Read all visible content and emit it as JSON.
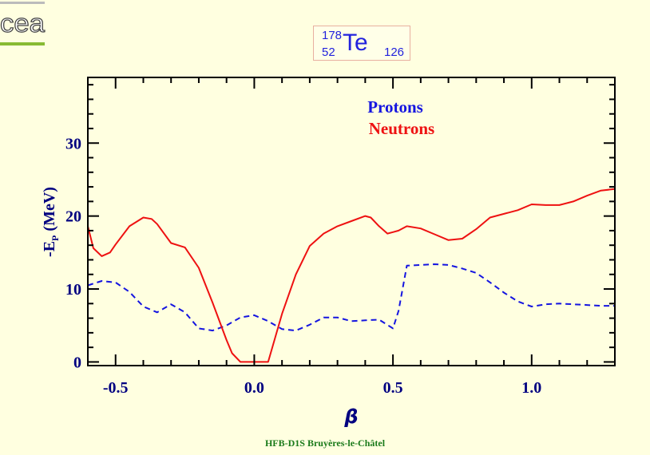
{
  "logo": {
    "text": "cea",
    "icon": "cea-logo-icon"
  },
  "nucleus": {
    "mass_number": "178",
    "atomic_number": "52",
    "symbol": "Te",
    "neutron_number": "126"
  },
  "footer": "HFB-D1S Bruyères-le-Châtel",
  "colors": {
    "background": "#ffffe0",
    "axis": "#000080",
    "protons": "#1515e0",
    "neutrons": "#ee1111",
    "footer": "#1a7a1a"
  },
  "chart_data": {
    "type": "line",
    "xlabel": "β",
    "ylabel": "-E",
    "ylabel_sub": "P",
    "ylabel_unit": "(MeV)",
    "xlim": [
      -0.6,
      1.3
    ],
    "ylim": [
      -0.5,
      39
    ],
    "x_ticks": [
      {
        "value": -0.5,
        "label": "-0.5"
      },
      {
        "value": 0.0,
        "label": "0.0"
      },
      {
        "value": 0.5,
        "label": "0.5"
      },
      {
        "value": 1.0,
        "label": "1.0"
      }
    ],
    "y_ticks": [
      {
        "value": 0,
        "label": "0"
      },
      {
        "value": 10,
        "label": "10"
      },
      {
        "value": 20,
        "label": "20"
      },
      {
        "value": 30,
        "label": "30"
      }
    ],
    "legend_position": "top-center",
    "grid": false,
    "series": [
      {
        "name": "Protons",
        "style": "dashed",
        "color": "#1515e0",
        "x": [
          -0.6,
          -0.55,
          -0.5,
          -0.45,
          -0.4,
          -0.35,
          -0.3,
          -0.25,
          -0.2,
          -0.15,
          -0.1,
          -0.05,
          0.0,
          0.05,
          0.1,
          0.15,
          0.2,
          0.25,
          0.3,
          0.35,
          0.4,
          0.45,
          0.5,
          0.52,
          0.55,
          0.6,
          0.65,
          0.7,
          0.75,
          0.8,
          0.85,
          0.9,
          0.95,
          1.0,
          1.05,
          1.1,
          1.15,
          1.2,
          1.25,
          1.3
        ],
        "y": [
          10.5,
          11.1,
          10.9,
          9.6,
          7.6,
          6.8,
          7.9,
          6.8,
          4.6,
          4.3,
          5.0,
          6.1,
          6.4,
          5.6,
          4.5,
          4.3,
          5.1,
          6.1,
          6.1,
          5.6,
          5.7,
          5.8,
          4.6,
          7.0,
          13.2,
          13.3,
          13.4,
          13.3,
          12.8,
          12.2,
          10.9,
          9.5,
          8.3,
          7.6,
          7.9,
          8.0,
          7.9,
          7.8,
          7.7,
          7.7
        ]
      },
      {
        "name": "Neutrons",
        "style": "solid",
        "color": "#ee1111",
        "x": [
          -0.6,
          -0.58,
          -0.55,
          -0.52,
          -0.5,
          -0.45,
          -0.4,
          -0.37,
          -0.35,
          -0.3,
          -0.25,
          -0.2,
          -0.15,
          -0.1,
          -0.08,
          -0.05,
          0.0,
          0.05,
          0.1,
          0.15,
          0.2,
          0.25,
          0.3,
          0.35,
          0.4,
          0.42,
          0.45,
          0.48,
          0.5,
          0.52,
          0.55,
          0.6,
          0.65,
          0.7,
          0.75,
          0.8,
          0.85,
          0.9,
          0.95,
          1.0,
          1.05,
          1.1,
          1.15,
          1.2,
          1.25,
          1.3
        ],
        "y": [
          18.6,
          15.6,
          14.5,
          15.0,
          16.1,
          18.6,
          19.8,
          19.6,
          18.9,
          16.3,
          15.7,
          12.9,
          8.1,
          3.0,
          1.2,
          0.0,
          0.0,
          0.0,
          6.6,
          12.0,
          15.9,
          17.6,
          18.6,
          19.3,
          20.0,
          19.8,
          18.6,
          17.6,
          17.8,
          18.0,
          18.6,
          18.3,
          17.5,
          16.7,
          16.9,
          18.2,
          19.8,
          20.3,
          20.8,
          21.6,
          21.5,
          21.5,
          22.0,
          22.8,
          23.5,
          23.7
        ]
      }
    ]
  }
}
